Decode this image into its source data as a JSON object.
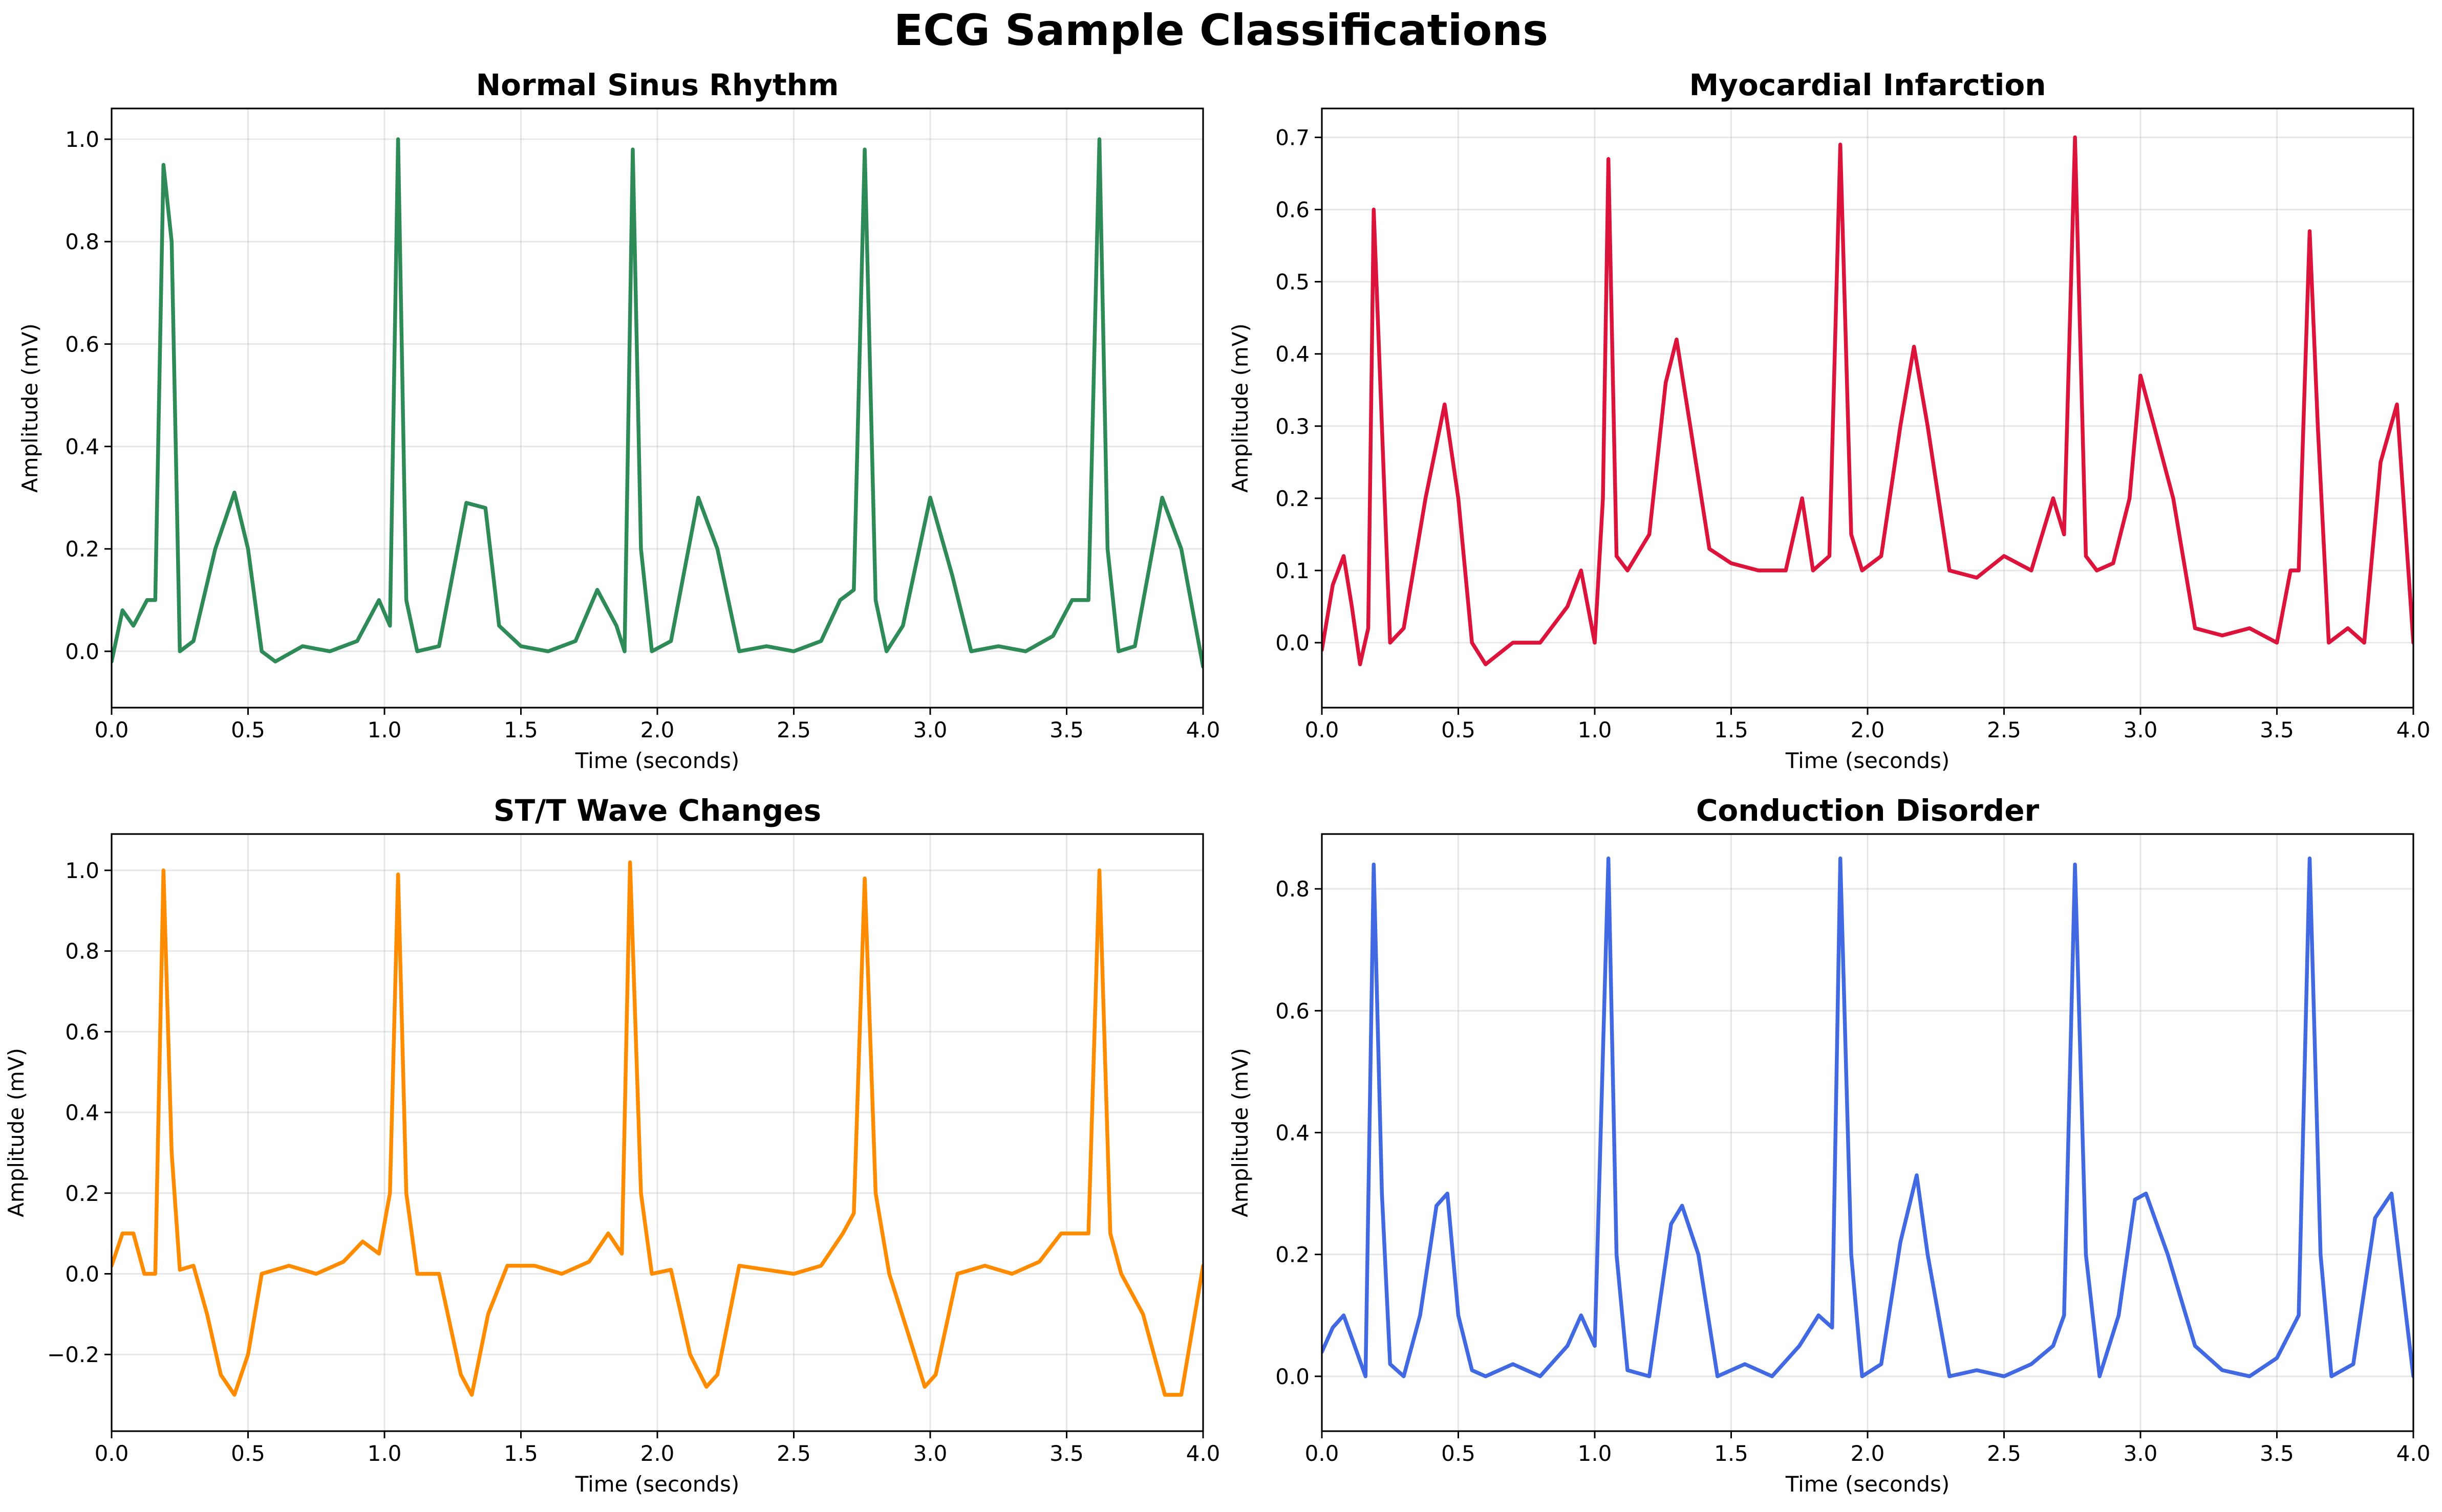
{
  "figure": {
    "suptitle": "ECG Sample Classifications"
  },
  "chart_data": [
    {
      "type": "line",
      "title": "Normal Sinus Rhythm",
      "xlabel": "Time (seconds)",
      "ylabel": "Amplitude (mV)",
      "xlim": [
        0,
        4
      ],
      "ylim": [
        -0.11,
        1.06
      ],
      "xticks": [
        0.0,
        0.5,
        1.0,
        1.5,
        2.0,
        2.5,
        3.0,
        3.5,
        4.0
      ],
      "xtick_labels": [
        "0.0",
        "0.5",
        "1.0",
        "1.5",
        "2.0",
        "2.5",
        "3.0",
        "3.5",
        "4.0"
      ],
      "yticks": [
        0.0,
        0.2,
        0.4,
        0.6,
        0.8,
        1.0
      ],
      "ytick_labels": [
        "0.0",
        "0.2",
        "0.4",
        "0.6",
        "0.8",
        "1.0"
      ],
      "grid": true,
      "color": "#2e8b57",
      "series": [
        {
          "x": [
            0.0,
            0.04,
            0.08,
            0.13,
            0.16,
            0.19,
            0.22,
            0.25,
            0.3,
            0.38,
            0.45,
            0.5,
            0.55,
            0.6,
            0.7,
            0.8,
            0.9,
            0.98,
            1.02,
            1.05,
            1.08,
            1.12,
            1.2,
            1.3,
            1.37,
            1.42,
            1.5,
            1.6,
            1.7,
            1.78,
            1.85,
            1.88,
            1.91,
            1.94,
            1.98,
            2.05,
            2.15,
            2.22,
            2.3,
            2.4,
            2.5,
            2.6,
            2.67,
            2.72,
            2.76,
            2.8,
            2.84,
            2.9,
            3.0,
            3.08,
            3.15,
            3.25,
            3.35,
            3.45,
            3.52,
            3.58,
            3.62,
            3.65,
            3.69,
            3.75,
            3.85,
            3.92,
            4.0
          ],
          "y": [
            -0.02,
            0.08,
            0.05,
            0.1,
            0.1,
            0.95,
            0.8,
            0.0,
            0.02,
            0.2,
            0.31,
            0.2,
            0.0,
            -0.02,
            0.01,
            0.0,
            0.02,
            0.1,
            0.05,
            1.0,
            0.1,
            0.0,
            0.01,
            0.29,
            0.28,
            0.05,
            0.01,
            0.0,
            0.02,
            0.12,
            0.05,
            0.0,
            0.98,
            0.2,
            0.0,
            0.02,
            0.3,
            0.2,
            0.0,
            0.01,
            0.0,
            0.02,
            0.1,
            0.12,
            0.98,
            0.1,
            0.0,
            0.05,
            0.3,
            0.15,
            0.0,
            0.01,
            0.0,
            0.03,
            0.1,
            0.1,
            1.0,
            0.2,
            0.0,
            0.01,
            0.3,
            0.2,
            -0.03
          ]
        }
      ]
    },
    {
      "type": "line",
      "title": "Myocardial Infarction",
      "xlabel": "Time (seconds)",
      "ylabel": "Amplitude (mV)",
      "xlim": [
        0,
        4
      ],
      "ylim": [
        -0.09,
        0.74
      ],
      "xticks": [
        0.0,
        0.5,
        1.0,
        1.5,
        2.0,
        2.5,
        3.0,
        3.5,
        4.0
      ],
      "xtick_labels": [
        "0.0",
        "0.5",
        "1.0",
        "1.5",
        "2.0",
        "2.5",
        "3.0",
        "3.5",
        "4.0"
      ],
      "yticks": [
        0.0,
        0.1,
        0.2,
        0.3,
        0.4,
        0.5,
        0.6,
        0.7
      ],
      "ytick_labels": [
        "0.0",
        "0.1",
        "0.2",
        "0.3",
        "0.4",
        "0.5",
        "0.6",
        "0.7"
      ],
      "grid": true,
      "color": "#dc143c",
      "series": [
        {
          "x": [
            0.0,
            0.04,
            0.08,
            0.11,
            0.14,
            0.17,
            0.19,
            0.22,
            0.25,
            0.3,
            0.38,
            0.45,
            0.5,
            0.55,
            0.6,
            0.7,
            0.8,
            0.9,
            0.95,
            1.0,
            1.03,
            1.05,
            1.08,
            1.12,
            1.2,
            1.26,
            1.3,
            1.35,
            1.42,
            1.5,
            1.6,
            1.7,
            1.76,
            1.8,
            1.86,
            1.9,
            1.94,
            1.98,
            2.05,
            2.12,
            2.17,
            2.22,
            2.3,
            2.4,
            2.5,
            2.6,
            2.68,
            2.72,
            2.76,
            2.8,
            2.84,
            2.9,
            2.96,
            3.0,
            3.05,
            3.12,
            3.2,
            3.3,
            3.4,
            3.5,
            3.55,
            3.58,
            3.62,
            3.65,
            3.69,
            3.76,
            3.82,
            3.88,
            3.94,
            4.0
          ],
          "y": [
            -0.01,
            0.08,
            0.12,
            0.05,
            -0.03,
            0.02,
            0.6,
            0.3,
            0.0,
            0.02,
            0.2,
            0.33,
            0.2,
            0.0,
            -0.03,
            0.0,
            0.0,
            0.05,
            0.1,
            0.0,
            0.2,
            0.67,
            0.12,
            0.1,
            0.15,
            0.36,
            0.42,
            0.3,
            0.13,
            0.11,
            0.1,
            0.1,
            0.2,
            0.1,
            0.12,
            0.69,
            0.15,
            0.1,
            0.12,
            0.3,
            0.41,
            0.3,
            0.1,
            0.09,
            0.12,
            0.1,
            0.2,
            0.15,
            0.7,
            0.12,
            0.1,
            0.11,
            0.2,
            0.37,
            0.3,
            0.2,
            0.02,
            0.01,
            0.02,
            0.0,
            0.1,
            0.1,
            0.57,
            0.3,
            0.0,
            0.02,
            0.0,
            0.25,
            0.33,
            0.0
          ]
        }
      ]
    },
    {
      "type": "line",
      "title": "ST/T Wave Changes",
      "xlabel": "Time (seconds)",
      "ylabel": "Amplitude (mV)",
      "xlim": [
        0,
        4
      ],
      "ylim": [
        -0.39,
        1.09
      ],
      "xticks": [
        0.0,
        0.5,
        1.0,
        1.5,
        2.0,
        2.5,
        3.0,
        3.5,
        4.0
      ],
      "xtick_labels": [
        "0.0",
        "0.5",
        "1.0",
        "1.5",
        "2.0",
        "2.5",
        "3.0",
        "3.5",
        "4.0"
      ],
      "yticks": [
        -0.2,
        0.0,
        0.2,
        0.4,
        0.6,
        0.8,
        1.0
      ],
      "ytick_labels": [
        "−0.2",
        "0.0",
        "0.2",
        "0.4",
        "0.6",
        "0.8",
        "1.0"
      ],
      "grid": true,
      "color": "#ff8c00",
      "series": [
        {
          "x": [
            0.0,
            0.04,
            0.08,
            0.12,
            0.16,
            0.19,
            0.22,
            0.25,
            0.3,
            0.35,
            0.4,
            0.45,
            0.5,
            0.55,
            0.65,
            0.75,
            0.85,
            0.92,
            0.98,
            1.02,
            1.05,
            1.08,
            1.12,
            1.2,
            1.28,
            1.32,
            1.38,
            1.45,
            1.55,
            1.65,
            1.75,
            1.82,
            1.87,
            1.9,
            1.94,
            1.98,
            2.05,
            2.12,
            2.18,
            2.22,
            2.3,
            2.4,
            2.5,
            2.6,
            2.68,
            2.72,
            2.76,
            2.8,
            2.85,
            2.92,
            2.98,
            3.02,
            3.1,
            3.2,
            3.3,
            3.4,
            3.48,
            3.55,
            3.58,
            3.62,
            3.66,
            3.7,
            3.78,
            3.86,
            3.92,
            4.0
          ],
          "y": [
            0.02,
            0.1,
            0.1,
            0.0,
            0.0,
            1.0,
            0.3,
            0.01,
            0.02,
            -0.1,
            -0.25,
            -0.3,
            -0.2,
            0.0,
            0.02,
            0.0,
            0.03,
            0.08,
            0.05,
            0.2,
            0.99,
            0.2,
            0.0,
            0.0,
            -0.25,
            -0.3,
            -0.1,
            0.02,
            0.02,
            0.0,
            0.03,
            0.1,
            0.05,
            1.02,
            0.2,
            0.0,
            0.01,
            -0.2,
            -0.28,
            -0.25,
            0.02,
            0.01,
            0.0,
            0.02,
            0.1,
            0.15,
            0.98,
            0.2,
            0.0,
            -0.15,
            -0.28,
            -0.25,
            0.0,
            0.02,
            0.0,
            0.03,
            0.1,
            0.1,
            0.1,
            1.0,
            0.1,
            0.0,
            -0.1,
            -0.3,
            -0.3,
            0.02
          ]
        }
      ]
    },
    {
      "type": "line",
      "title": "Conduction Disorder",
      "xlabel": "Time (seconds)",
      "ylabel": "Amplitude (mV)",
      "xlim": [
        0,
        4
      ],
      "ylim": [
        -0.09,
        0.89
      ],
      "xticks": [
        0.0,
        0.5,
        1.0,
        1.5,
        2.0,
        2.5,
        3.0,
        3.5,
        4.0
      ],
      "xtick_labels": [
        "0.0",
        "0.5",
        "1.0",
        "1.5",
        "2.0",
        "2.5",
        "3.0",
        "3.5",
        "4.0"
      ],
      "yticks": [
        0.0,
        0.2,
        0.4,
        0.6,
        0.8
      ],
      "ytick_labels": [
        "0.0",
        "0.2",
        "0.4",
        "0.6",
        "0.8"
      ],
      "grid": true,
      "color": "#4169e1",
      "series": [
        {
          "x": [
            0.0,
            0.04,
            0.08,
            0.12,
            0.16,
            0.19,
            0.22,
            0.25,
            0.3,
            0.36,
            0.42,
            0.46,
            0.5,
            0.55,
            0.6,
            0.7,
            0.8,
            0.9,
            0.95,
            1.0,
            1.05,
            1.08,
            1.12,
            1.2,
            1.28,
            1.32,
            1.38,
            1.45,
            1.55,
            1.65,
            1.75,
            1.82,
            1.87,
            1.9,
            1.94,
            1.98,
            2.05,
            2.12,
            2.18,
            2.22,
            2.3,
            2.4,
            2.5,
            2.6,
            2.68,
            2.72,
            2.76,
            2.8,
            2.85,
            2.92,
            2.98,
            3.02,
            3.1,
            3.2,
            3.3,
            3.4,
            3.5,
            3.58,
            3.62,
            3.66,
            3.7,
            3.78,
            3.86,
            3.92,
            4.0
          ],
          "y": [
            0.04,
            0.08,
            0.1,
            0.05,
            0.0,
            0.84,
            0.3,
            0.02,
            0.0,
            0.1,
            0.28,
            0.3,
            0.1,
            0.01,
            0.0,
            0.02,
            0.0,
            0.05,
            0.1,
            0.05,
            0.85,
            0.2,
            0.01,
            0.0,
            0.25,
            0.28,
            0.2,
            0.0,
            0.02,
            0.0,
            0.05,
            0.1,
            0.08,
            0.85,
            0.2,
            0.0,
            0.02,
            0.22,
            0.33,
            0.2,
            0.0,
            0.01,
            0.0,
            0.02,
            0.05,
            0.1,
            0.84,
            0.2,
            0.0,
            0.1,
            0.29,
            0.3,
            0.2,
            0.05,
            0.01,
            0.0,
            0.03,
            0.1,
            0.85,
            0.2,
            0.0,
            0.02,
            0.26,
            0.3,
            0.0
          ]
        }
      ]
    }
  ]
}
